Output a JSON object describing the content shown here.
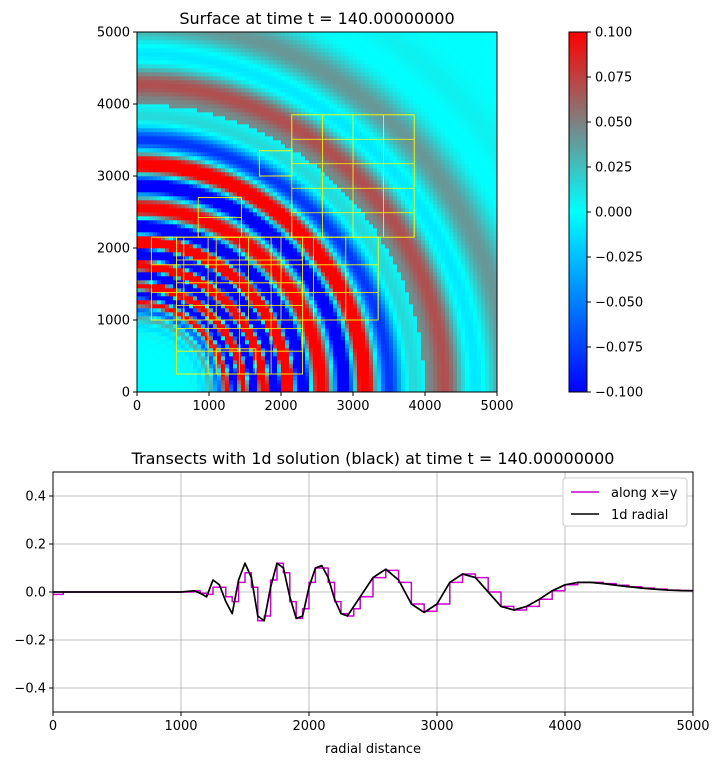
{
  "chart_data": [
    {
      "type": "heatmap",
      "title": "Surface at time t =   140.00000000",
      "xlabel": "",
      "ylabel": "",
      "xlim": [
        0,
        5000
      ],
      "ylim": [
        0,
        5000
      ],
      "xticks": [
        "0",
        "1000",
        "2000",
        "3000",
        "4000",
        "5000"
      ],
      "yticks": [
        "0",
        "1000",
        "2000",
        "3000",
        "4000",
        "5000"
      ],
      "colorbar": {
        "range": [
          -0.1,
          0.1
        ],
        "ticks": [
          "0.100",
          "0.075",
          "0.050",
          "0.025",
          "0.000",
          "−0.025",
          "−0.050",
          "−0.075",
          "−0.100"
        ],
        "colors": [
          "#0000ff",
          "#00ffff",
          "#ff0000"
        ]
      },
      "wave": {
        "description_free": true,
        "ring_radii": [
          1250,
          1480,
          1780,
          2100,
          2600,
          3200,
          4200
        ],
        "ring_amplitudes": [
          0.06,
          0.1,
          0.12,
          0.11,
          0.09,
          0.08,
          0.04
        ],
        "wavelengths": [
          230,
          260,
          310,
          370,
          520,
          620,
          1000
        ]
      },
      "grid_patches": [
        [
          2150,
          3850,
          2150,
          3850
        ],
        [
          200,
          3350,
          1000,
          2150
        ],
        [
          550,
          2300,
          250,
          2150
        ],
        [
          1100,
          1650,
          250,
          600
        ],
        [
          1700,
          2150,
          3000,
          3350
        ],
        [
          850,
          1450,
          2150,
          2700
        ]
      ],
      "grid_line_color": "#ffff00"
    },
    {
      "type": "line",
      "title": "Transects with 1d solution (black) at time t =   140.00000000",
      "xlabel": "radial distance",
      "ylabel": "",
      "xlim": [
        0,
        5000
      ],
      "ylim": [
        -0.5,
        0.5
      ],
      "xticks": [
        "0",
        "1000",
        "2000",
        "3000",
        "4000",
        "5000"
      ],
      "yticks": [
        "0.4",
        "0.2",
        "0.0",
        "−0.2",
        "−0.4"
      ],
      "grid": true,
      "legend": "top-right",
      "series": [
        {
          "name": "along x=y",
          "color": "#cc00cc",
          "x": [
            0,
            60,
            80,
            1000,
            1100,
            1150,
            1200,
            1250,
            1300,
            1350,
            1400,
            1450,
            1500,
            1550,
            1600,
            1650,
            1700,
            1750,
            1800,
            1850,
            1900,
            1950,
            2000,
            2050,
            2100,
            2150,
            2200,
            2250,
            2300,
            2350,
            2400,
            2500,
            2600,
            2700,
            2800,
            2900,
            3000,
            3100,
            3200,
            3300,
            3400,
            3500,
            3600,
            3700,
            3800,
            3900,
            4000,
            4100,
            4200,
            4300,
            4400,
            4500,
            4600,
            4700,
            4800,
            4900,
            5000
          ],
          "y": [
            -0.01,
            -0.01,
            0.0,
            0.0,
            0.005,
            -0.005,
            -0.01,
            0.02,
            0.02,
            -0.02,
            -0.04,
            0.04,
            0.08,
            0.02,
            -0.12,
            -0.1,
            0.05,
            0.12,
            0.08,
            -0.04,
            -0.11,
            -0.07,
            0.04,
            0.1,
            0.1,
            0.04,
            -0.04,
            -0.09,
            -0.1,
            -0.07,
            -0.02,
            0.06,
            0.09,
            0.04,
            -0.05,
            -0.08,
            -0.05,
            0.04,
            0.075,
            0.06,
            0.0,
            -0.06,
            -0.075,
            -0.06,
            -0.03,
            0.005,
            0.03,
            0.04,
            0.04,
            0.035,
            0.028,
            0.022,
            0.016,
            0.012,
            0.008,
            0.006,
            0.005
          ]
        },
        {
          "name": "1d radial",
          "color": "#000000",
          "x": [
            0,
            1000,
            1100,
            1150,
            1200,
            1250,
            1300,
            1350,
            1400,
            1450,
            1500,
            1550,
            1600,
            1650,
            1700,
            1750,
            1800,
            1850,
            1900,
            1950,
            2000,
            2050,
            2100,
            2150,
            2200,
            2250,
            2300,
            2350,
            2400,
            2500,
            2600,
            2700,
            2800,
            2900,
            3000,
            3100,
            3200,
            3300,
            3400,
            3500,
            3600,
            3700,
            3800,
            3900,
            4000,
            4100,
            4200,
            4300,
            4400,
            4500,
            4600,
            4700,
            4800,
            4900,
            5000
          ],
          "y": [
            0.0,
            0.0,
            0.005,
            -0.005,
            -0.02,
            0.05,
            0.03,
            -0.04,
            -0.09,
            0.05,
            0.12,
            0.06,
            -0.1,
            -0.12,
            0.02,
            0.12,
            0.1,
            -0.02,
            -0.11,
            -0.1,
            0.02,
            0.1,
            0.11,
            0.06,
            -0.03,
            -0.09,
            -0.1,
            -0.06,
            -0.02,
            0.06,
            0.095,
            0.05,
            -0.05,
            -0.085,
            -0.05,
            0.04,
            0.075,
            0.06,
            0.0,
            -0.06,
            -0.075,
            -0.06,
            -0.03,
            0.005,
            0.03,
            0.04,
            0.04,
            0.035,
            0.028,
            0.022,
            0.016,
            0.012,
            0.008,
            0.006,
            0.005
          ]
        }
      ]
    }
  ]
}
